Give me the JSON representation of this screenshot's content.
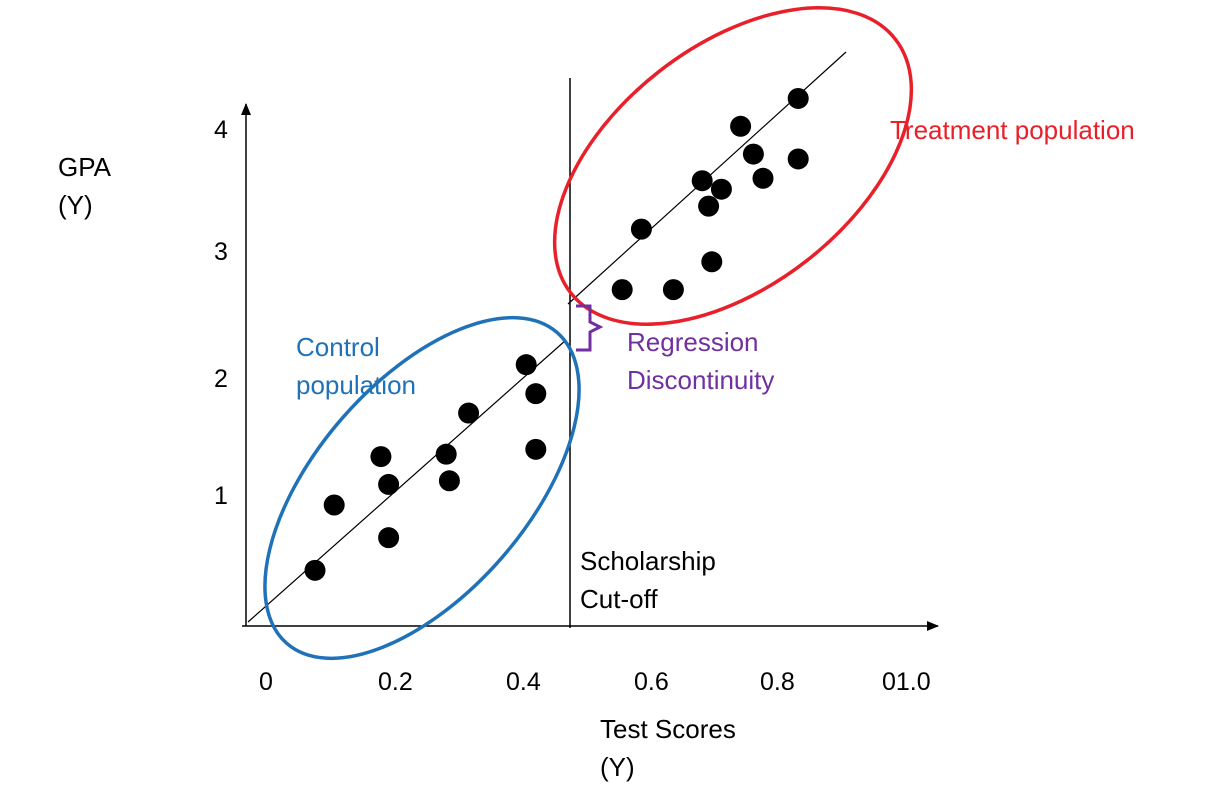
{
  "y_axis": {
    "label_line1": "GPA",
    "label_line2": "(Y)",
    "ticks": [
      "1",
      "2",
      "3",
      "4"
    ]
  },
  "x_axis": {
    "label_line1": "Test Scores",
    "label_line2": "(Y)",
    "ticks": [
      "0",
      "0.2",
      "0.4",
      "0.6",
      "0.8",
      "01.0"
    ]
  },
  "cutoff": {
    "label_line1": "Scholarship",
    "label_line2": "Cut-off"
  },
  "control": {
    "label_line1": "Control",
    "label_line2": "population",
    "color": "#1f72b8"
  },
  "treatment": {
    "label": "Treatment population",
    "color": "#e8202a"
  },
  "discontinuity": {
    "label_line1": "Regression",
    "label_line2": "Discontinuity",
    "color": "#7030a0"
  },
  "chart_data": {
    "type": "scatter",
    "x_ticks": [
      0,
      0.2,
      0.4,
      0.6,
      0.8,
      1.0
    ],
    "y_ticks": [
      1,
      2,
      3,
      4
    ],
    "cutoff_x": 0.47,
    "control_points": [
      [
        0.075,
        0.46
      ],
      [
        0.105,
        1.0
      ],
      [
        0.178,
        1.4
      ],
      [
        0.19,
        1.17
      ],
      [
        0.19,
        0.73
      ],
      [
        0.28,
        1.42
      ],
      [
        0.285,
        1.2
      ],
      [
        0.315,
        1.76
      ],
      [
        0.405,
        2.16
      ],
      [
        0.42,
        1.92
      ],
      [
        0.42,
        1.46
      ]
    ],
    "treatment_points": [
      [
        0.555,
        2.78
      ],
      [
        0.585,
        3.28
      ],
      [
        0.635,
        2.78
      ],
      [
        0.68,
        3.68
      ],
      [
        0.69,
        3.47
      ],
      [
        0.695,
        3.01
      ],
      [
        0.71,
        3.61
      ],
      [
        0.74,
        4.13
      ],
      [
        0.76,
        3.9
      ],
      [
        0.775,
        3.7
      ],
      [
        0.83,
        4.36
      ],
      [
        0.83,
        3.86
      ]
    ]
  }
}
